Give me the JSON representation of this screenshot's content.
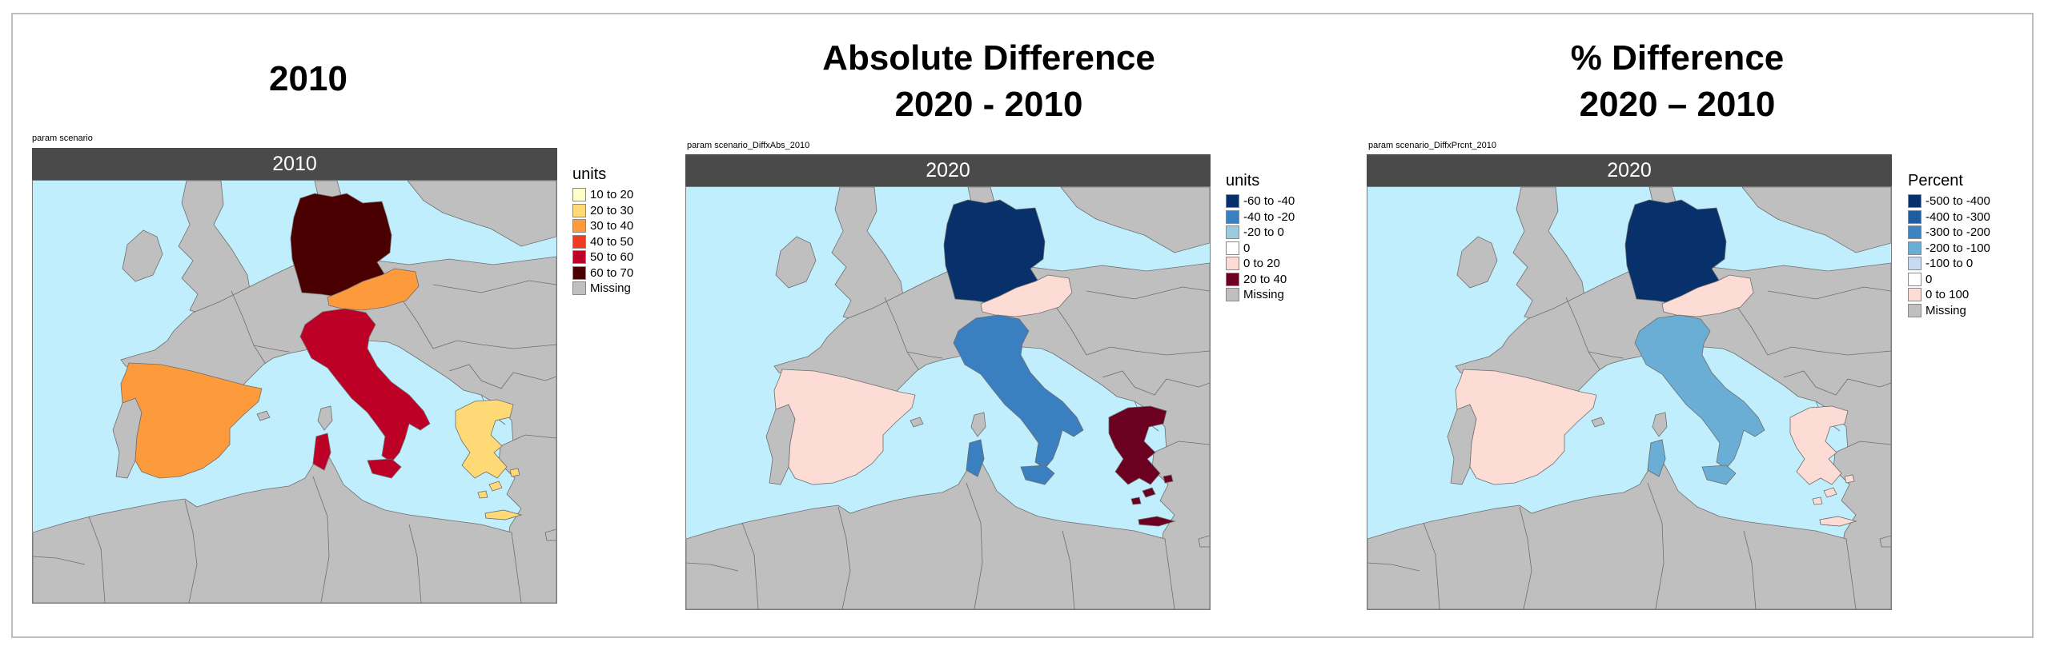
{
  "colors": {
    "sea": "#c1eefc",
    "land": "#bfbfbf",
    "border": "#6e6e6e",
    "strip": "#4a4a4a"
  },
  "panels": [
    {
      "title": [
        "2010"
      ],
      "param_label": "param scenario",
      "strip_label": "2010",
      "legend": {
        "title": "units",
        "items": [
          {
            "label": "10 to 20",
            "color": "#ffffcc"
          },
          {
            "label": "20 to 30",
            "color": "#fed976"
          },
          {
            "label": "30 to 40",
            "color": "#fd9a3c"
          },
          {
            "label": "40 to 50",
            "color": "#f03b20"
          },
          {
            "label": "50 to 60",
            "color": "#bd0026"
          },
          {
            "label": "60 to 70",
            "color": "#4a0000"
          },
          {
            "label": "Missing",
            "color": "#bfbfbf"
          }
        ]
      },
      "regions": {
        "germany": {
          "bin": "60 to 70",
          "color": "#4a0000"
        },
        "austria": {
          "bin": "30 to 40",
          "color": "#fd9a3c"
        },
        "italy": {
          "bin": "50 to 60",
          "color": "#bd0026"
        },
        "spain": {
          "bin": "30 to 40",
          "color": "#fd9a3c"
        },
        "greece": {
          "bin": "20 to 30",
          "color": "#fed976"
        }
      }
    },
    {
      "title": [
        "Absolute Difference",
        "2020 - 2010"
      ],
      "param_label": "param scenario_DiffxAbs_2010",
      "strip_label": "2020",
      "legend": {
        "title": "units",
        "items": [
          {
            "label": "-60 to -40",
            "color": "#08306b"
          },
          {
            "label": "-40 to -20",
            "color": "#3a7fc0"
          },
          {
            "label": "-20 to 0",
            "color": "#9ecae1"
          },
          {
            "label": "0",
            "color": "#ffffff"
          },
          {
            "label": "0 to 20",
            "color": "#fcdcd5"
          },
          {
            "label": "20 to 40",
            "color": "#6b0020"
          },
          {
            "label": "Missing",
            "color": "#bfbfbf"
          }
        ]
      },
      "regions": {
        "germany": {
          "bin": "-60 to -40",
          "color": "#08306b"
        },
        "austria": {
          "bin": "0 to 20",
          "color": "#fcdcd5"
        },
        "italy": {
          "bin": "-40 to -20",
          "color": "#3a7fc0"
        },
        "spain": {
          "bin": "0 to 20",
          "color": "#fcdcd5"
        },
        "greece": {
          "bin": "20 to 40",
          "color": "#6b0020"
        }
      }
    },
    {
      "title": [
        "% Difference",
        "2020 – 2010"
      ],
      "param_label": "param scenario_DiffxPrcnt_2010",
      "strip_label": "2020",
      "legend": {
        "title": "Percent",
        "items": [
          {
            "label": "-500 to -400",
            "color": "#08306b"
          },
          {
            "label": "-400 to -300",
            "color": "#1f5d9e"
          },
          {
            "label": "-300 to -200",
            "color": "#3d84c0"
          },
          {
            "label": "-200 to -100",
            "color": "#6aaed6"
          },
          {
            "label": "-100 to 0",
            "color": "#c6dbef"
          },
          {
            "label": "0",
            "color": "#ffffff"
          },
          {
            "label": "0 to 100",
            "color": "#fcdcd5"
          },
          {
            "label": "Missing",
            "color": "#bfbfbf"
          }
        ]
      },
      "regions": {
        "germany": {
          "bin": "-500 to -400",
          "color": "#08306b"
        },
        "austria": {
          "bin": "0 to 100",
          "color": "#fcdcd5"
        },
        "italy": {
          "bin": "-200 to -100",
          "color": "#6aaed6"
        },
        "spain": {
          "bin": "0 to 100",
          "color": "#fcdcd5"
        },
        "greece": {
          "bin": "0 to 100",
          "color": "#fcdcd5"
        }
      }
    }
  ]
}
